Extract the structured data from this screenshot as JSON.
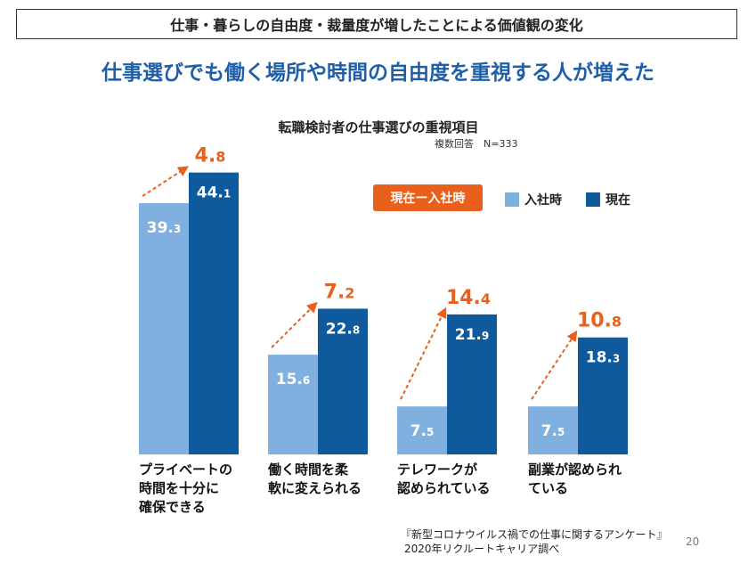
{
  "header": {
    "title": "仕事・暮らしの自由度・裁量度が増したことによる価値観の変化",
    "subtitle": "仕事選びでも働く場所や時間の自由度を重視する人が増えた"
  },
  "chart_data": {
    "type": "bar",
    "title": "転職検討者の仕事選びの重視項目",
    "note": "複数回答　N=333",
    "categories": [
      [
        "プライベートの",
        "時間を十分に",
        "確保できる"
      ],
      [
        "働く時間を柔",
        "軟に変えられる"
      ],
      [
        "テレワークが",
        "認められている"
      ],
      [
        "副業が認められ",
        "ている"
      ]
    ],
    "series": [
      {
        "name": "入社時",
        "values": [
          39.3,
          15.6,
          7.5,
          7.5
        ]
      },
      {
        "name": "現在",
        "values": [
          44.1,
          22.8,
          21.9,
          18.3
        ]
      }
    ],
    "differences": [
      4.8,
      7.2,
      14.4,
      10.8
    ],
    "difference_label": "現在ー入社時",
    "ylim": [
      0,
      46
    ],
    "colors": {
      "before": "#7fb0e0",
      "now": "#0f5a9c",
      "diff": "#e8601c"
    }
  },
  "footer": {
    "source_line1": "『新型コロナウイルス禍での仕事に関するアンケート』",
    "source_line2": "2020年リクルートキャリア調べ",
    "page_number": "20"
  }
}
